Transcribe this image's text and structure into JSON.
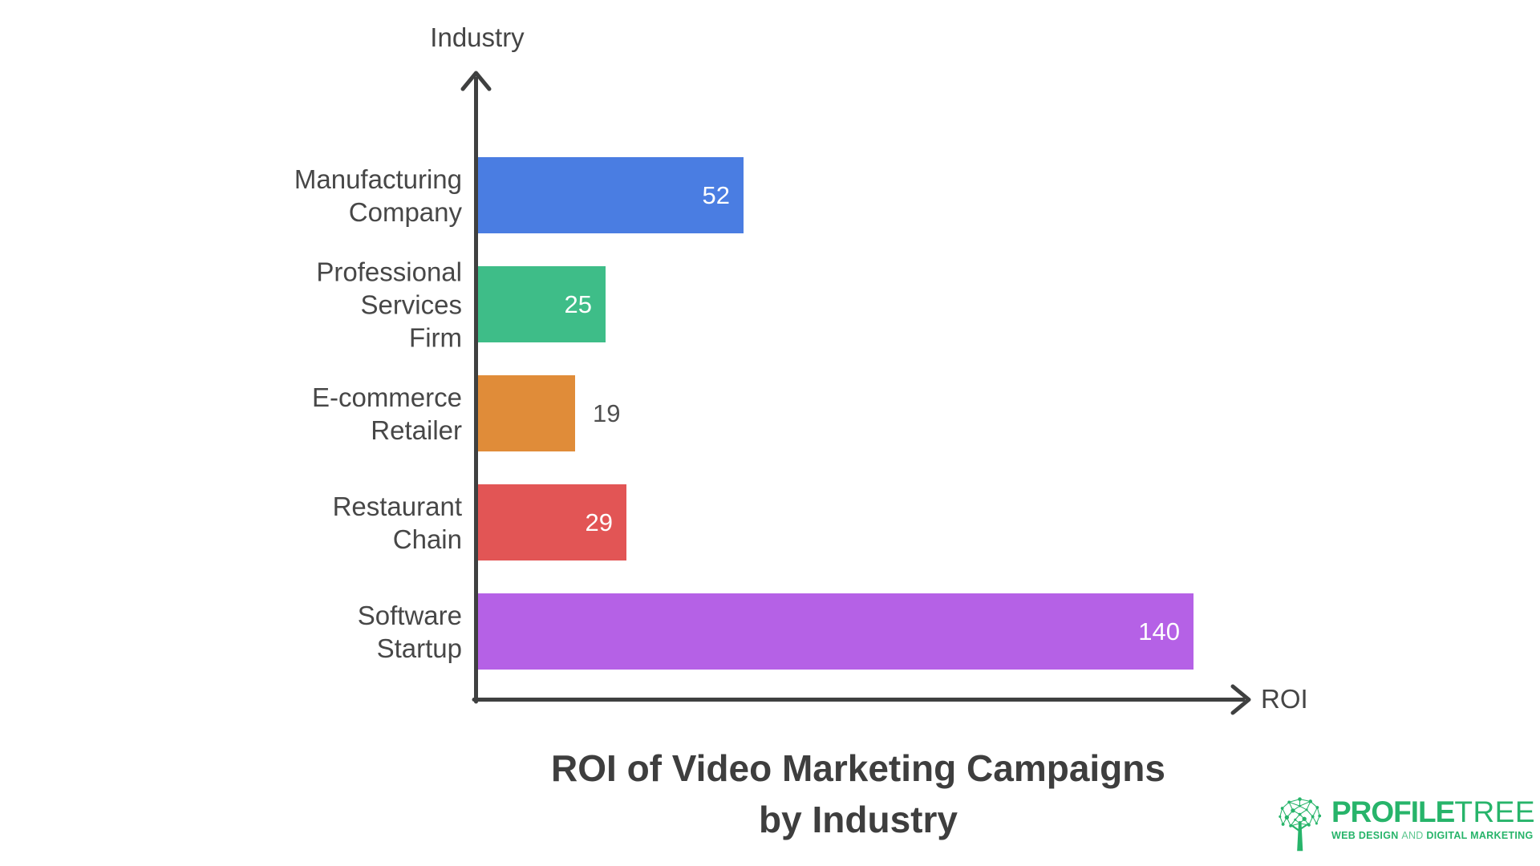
{
  "chart_data": {
    "type": "bar",
    "orientation": "horizontal",
    "title": "ROI of Video Marketing Campaigns by Industry",
    "title_lines": [
      "ROI of Video Marketing Campaigns",
      "by Industry"
    ],
    "xlabel": "ROI",
    "ylabel": "Industry",
    "categories": [
      "Manufacturing Company",
      "Professional Services Firm",
      "E-commerce Retailer",
      "Restaurant Chain",
      "Software Startup"
    ],
    "category_label_lines": [
      [
        "Manufacturing",
        "Company"
      ],
      [
        "Professional",
        "Services",
        "Firm"
      ],
      [
        "E-commerce",
        "Retailer"
      ],
      [
        "Restaurant",
        "Chain"
      ],
      [
        "Software",
        "Startup"
      ]
    ],
    "values": [
      52,
      25,
      19,
      29,
      140
    ],
    "value_labels": [
      "52",
      "25",
      "19",
      "29",
      "140"
    ],
    "value_label_placement": [
      "inside",
      "inside",
      "outside",
      "inside",
      "inside"
    ],
    "bar_colors": [
      "#4a7de2",
      "#3ebd88",
      "#e08c39",
      "#e25555",
      "#b561e6"
    ],
    "xlim": [
      0,
      140
    ],
    "grid": false,
    "legend": false,
    "axis_color": "#3f4040"
  },
  "branding": {
    "brand_bold": "PROFILE",
    "brand_light": "TREE",
    "tagline_web_design": "WEB DESIGN",
    "tagline_and": "AND",
    "tagline_digital_marketing": "DIGITAL MARKETING",
    "brand_color": "#27b46a"
  }
}
